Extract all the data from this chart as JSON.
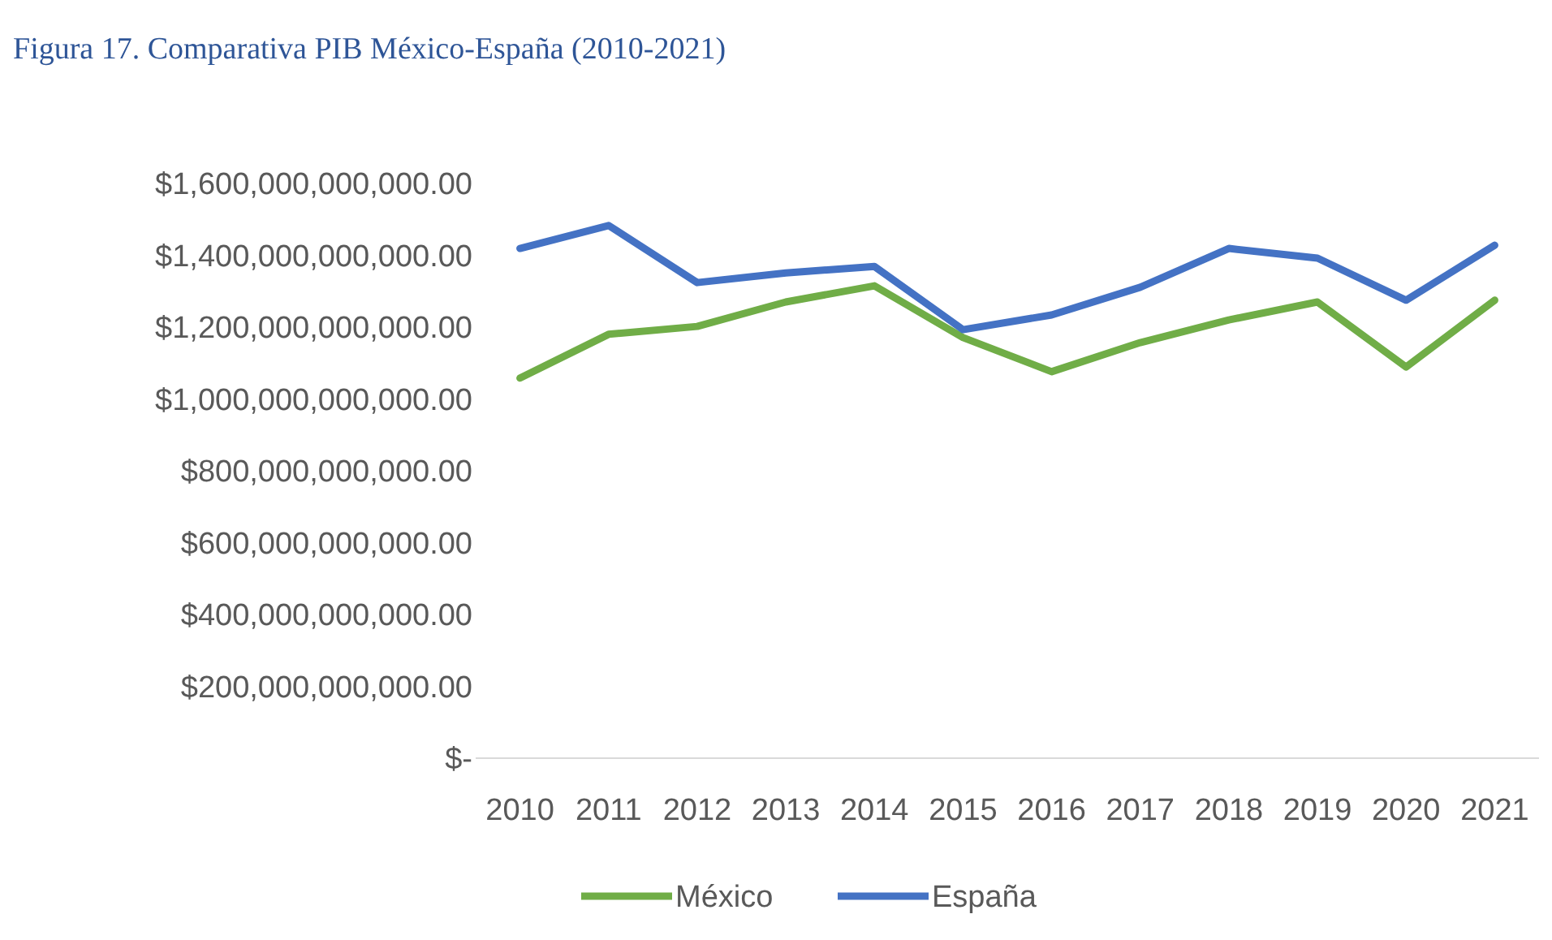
{
  "chart_data": {
    "type": "line",
    "title": "Figura 17. Comparativa PIB México-España (2010-2021)",
    "categories": [
      "2010",
      "2011",
      "2012",
      "2013",
      "2014",
      "2015",
      "2016",
      "2017",
      "2018",
      "2019",
      "2020",
      "2021"
    ],
    "series": [
      {
        "name": "México",
        "color": "#70ad47",
        "values": [
          1058000000000,
          1180000000000,
          1202000000000,
          1270000000000,
          1315000000000,
          1171000000000,
          1076000000000,
          1157000000000,
          1220000000000,
          1270000000000,
          1089000000000,
          1275000000000
        ]
      },
      {
        "name": "España",
        "color": "#4472c4",
        "values": [
          1419000000000,
          1483000000000,
          1324000000000,
          1351000000000,
          1369000000000,
          1193000000000,
          1234000000000,
          1311000000000,
          1419000000000,
          1392000000000,
          1275000000000,
          1428000000000
        ]
      }
    ],
    "ylim": [
      0,
      1600000000000
    ],
    "yticks": [
      {
        "value": 0,
        "label": "$-"
      },
      {
        "value": 200000000000,
        "label": "$200,000,000,000.00"
      },
      {
        "value": 400000000000,
        "label": "$400,000,000,000.00"
      },
      {
        "value": 600000000000,
        "label": "$600,000,000,000.00"
      },
      {
        "value": 800000000000,
        "label": "$800,000,000,000.00"
      },
      {
        "value": 1000000000000,
        "label": "$1,000,000,000,000.00"
      },
      {
        "value": 1200000000000,
        "label": "$1,200,000,000,000.00"
      },
      {
        "value": 1400000000000,
        "label": "$1,400,000,000,000.00"
      },
      {
        "value": 1600000000000,
        "label": "$1,600,000,000,000.00"
      }
    ],
    "grid": false,
    "legend": "bottom",
    "marker": "none",
    "line_style": "solid"
  }
}
